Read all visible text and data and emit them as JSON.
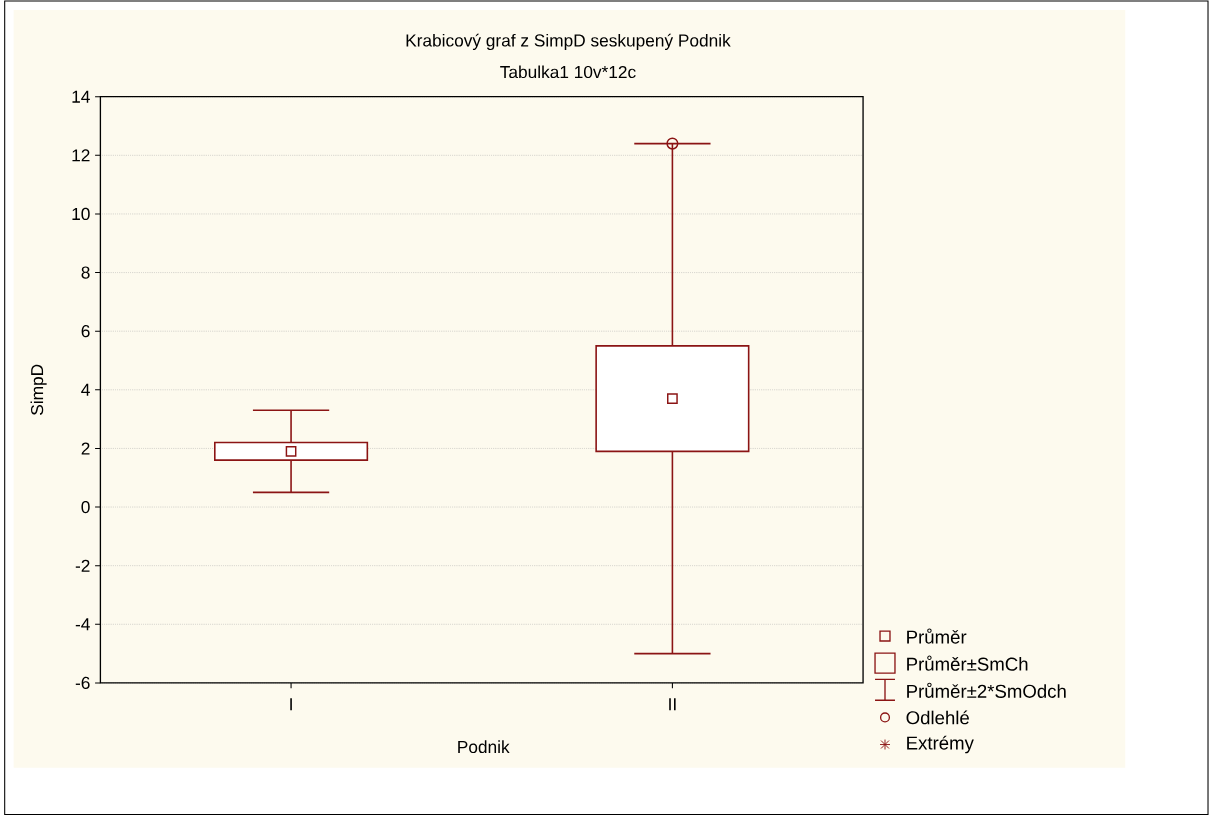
{
  "chart_data": {
    "type": "box",
    "title": "Krabicový graf z SimpD seskupený Podnik",
    "subtitle": "Tabulka1 10v*12c",
    "xlabel": "Podnik",
    "ylabel": "SimpD",
    "categories": [
      "I",
      "II"
    ],
    "series": [
      {
        "color": "#8b1414",
        "boxes": [
          {
            "low": 0.5,
            "q1": 1.6,
            "median": 1.9,
            "q3": 2.2,
            "high": 3.3
          },
          {
            "low": -5.0,
            "q1": 1.9,
            "median": 3.7,
            "q3": 5.5,
            "high": 12.4,
            "outliers": [
              12.4
            ]
          }
        ]
      }
    ],
    "ylim": [
      -6,
      14
    ],
    "yticks": [
      -6,
      -4,
      -2,
      0,
      2,
      4,
      6,
      8,
      10,
      12,
      14
    ],
    "grid": "y",
    "annotations": [
      "Průměr",
      "Průměr±SmCh",
      "Průměr±2*SmOdch",
      "Odlehlé",
      "Extrémy"
    ]
  }
}
